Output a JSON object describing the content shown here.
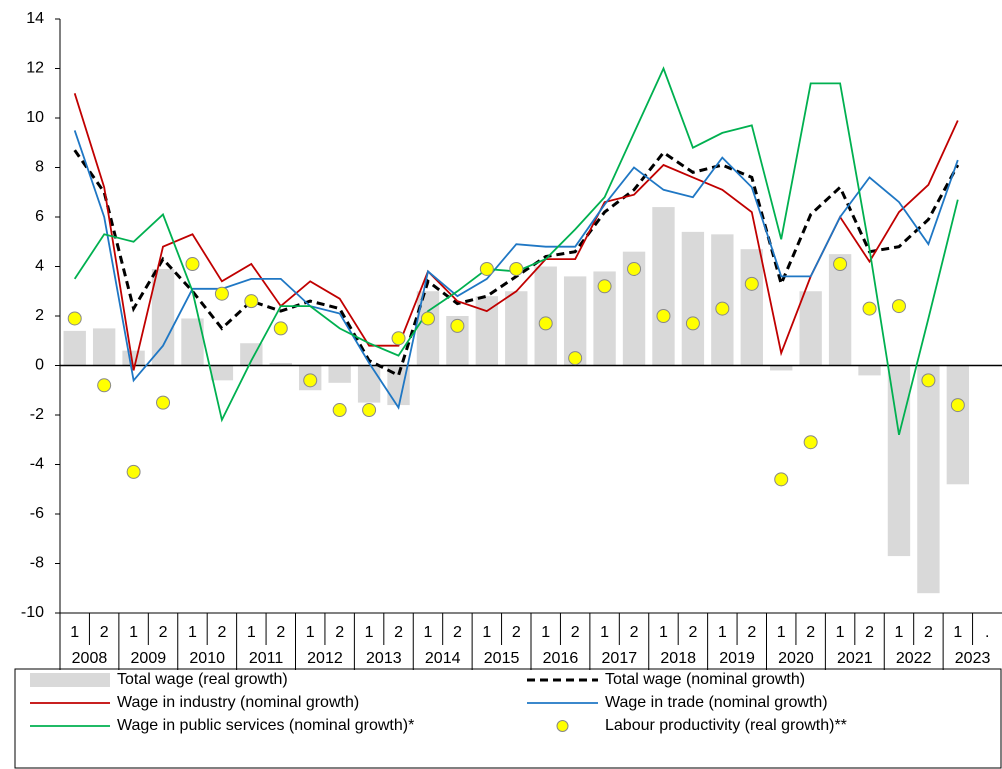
{
  "chart_data": {
    "type": "combo",
    "categories": [
      "1",
      "2",
      "1",
      "2",
      "1",
      "2",
      "1",
      "2",
      "1",
      "2",
      "1",
      "2",
      "1",
      "2",
      "1",
      "2",
      "1",
      "2",
      "1",
      "2",
      "1",
      "2",
      "1",
      "2",
      "1",
      "2",
      "1",
      "2",
      "1",
      "2",
      "1",
      "."
    ],
    "years": [
      "2008",
      "2009",
      "2010",
      "2011",
      "2012",
      "2013",
      "2014",
      "2015",
      "2016",
      "2017",
      "2018",
      "2019",
      "2020",
      "2021",
      "2022",
      "2023"
    ],
    "ylim": [
      -10,
      14
    ],
    "yticks": [
      -10,
      -8,
      -6,
      -4,
      -2,
      0,
      2,
      4,
      6,
      8,
      10,
      12,
      14
    ],
    "series": [
      {
        "name": "Total wage (real growth)",
        "mark": "bar",
        "color": "#d9d9d9",
        "values": [
          1.4,
          1.5,
          0.6,
          3.9,
          1.9,
          -0.6,
          0.9,
          0.1,
          -1.0,
          -0.7,
          -1.5,
          -1.6,
          3.0,
          2.0,
          2.8,
          3.0,
          4.0,
          3.6,
          3.8,
          4.6,
          6.4,
          5.4,
          5.3,
          4.7,
          -0.2,
          3.0,
          4.5,
          -0.4,
          -7.7,
          -9.2,
          -4.8,
          null
        ]
      },
      {
        "name": "Total wage (nominal growth)",
        "mark": "line",
        "dash": true,
        "color": "#000000",
        "values": [
          8.7,
          7.0,
          2.3,
          4.3,
          3.0,
          1.5,
          2.6,
          2.2,
          2.6,
          2.3,
          0.2,
          -0.4,
          3.4,
          2.5,
          2.8,
          3.6,
          4.4,
          4.6,
          6.2,
          7.1,
          8.6,
          7.8,
          8.1,
          7.6,
          3.3,
          6.1,
          7.2,
          4.6,
          4.8,
          5.9,
          8.1,
          null
        ]
      },
      {
        "name": "Wage in industry (nominal growth)",
        "mark": "line",
        "dash": false,
        "color": "#c00000",
        "values": [
          11.0,
          7.2,
          -0.2,
          4.8,
          5.3,
          3.4,
          4.1,
          2.4,
          3.4,
          2.7,
          0.8,
          0.8,
          3.8,
          2.6,
          2.2,
          3.0,
          4.3,
          4.3,
          6.6,
          6.9,
          8.1,
          7.6,
          7.1,
          6.2,
          0.5,
          3.6,
          6.0,
          4.2,
          6.2,
          7.3,
          9.9,
          null
        ]
      },
      {
        "name": "Wage in trade (nominal growth)",
        "mark": "line",
        "dash": false,
        "color": "#1f77c4",
        "values": [
          9.5,
          6.0,
          -0.6,
          0.8,
          3.1,
          3.1,
          3.5,
          3.5,
          2.4,
          2.1,
          0.1,
          -1.7,
          3.8,
          2.8,
          3.5,
          4.9,
          4.8,
          4.8,
          6.5,
          8.0,
          7.1,
          6.8,
          8.4,
          7.2,
          3.6,
          3.6,
          6.0,
          7.6,
          6.6,
          4.9,
          8.3,
          null
        ]
      },
      {
        "name": "Wage in public services (nominal growth)*",
        "mark": "line",
        "dash": false,
        "color": "#00b050",
        "values": [
          3.5,
          5.3,
          5.0,
          6.1,
          3.0,
          -2.2,
          0.2,
          2.4,
          2.4,
          1.5,
          0.9,
          0.4,
          2.2,
          3.0,
          3.9,
          3.8,
          4.3,
          5.5,
          6.8,
          9.4,
          12.0,
          8.8,
          9.4,
          9.7,
          5.1,
          11.4,
          11.4,
          4.7,
          -2.8,
          1.9,
          6.7,
          null
        ]
      },
      {
        "name": "Labour productivity (real growth)**",
        "mark": "scatter",
        "color": "#ffff00",
        "values": [
          1.9,
          -0.8,
          -4.3,
          -1.5,
          4.1,
          2.9,
          2.6,
          1.5,
          -0.6,
          -1.8,
          -1.8,
          1.1,
          1.9,
          1.6,
          3.9,
          3.9,
          1.7,
          0.3,
          3.2,
          3.9,
          2.0,
          1.7,
          2.3,
          3.3,
          -4.6,
          -3.1,
          4.1,
          2.3,
          2.4,
          -0.6,
          -1.6,
          null
        ]
      }
    ]
  }
}
